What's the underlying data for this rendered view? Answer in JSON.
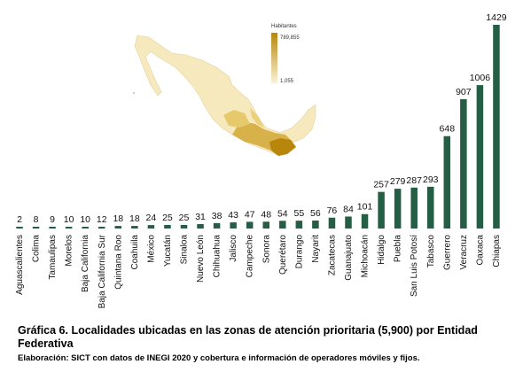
{
  "chart_data": {
    "type": "bar",
    "title": "Gráfica 6. Localidades ubicadas en las zonas de atención prioritaria (5,900) por Entidad Federativa",
    "source": "Elaboración: SICT con datos de INEGI 2020 y cobertura e información de operadores móviles y fijos.",
    "categories": [
      "Aguascalientes",
      "Colima",
      "Tamaulipas",
      "Morelos",
      "Baja California",
      "Baja California Sur",
      "Quintana Roo",
      "Coahuila",
      "México",
      "Yucatán",
      "Sinaloa",
      "Nuevo León",
      "Chihuahua",
      "Jalisco",
      "Campeche",
      "Sonora",
      "Querétaro",
      "Durango",
      "Nayarit",
      "Zacatecas",
      "Guanajuato",
      "Michoacán",
      "Hidalgo",
      "Puebla",
      "San Luis Potosí",
      "Tabasco",
      "Guerrero",
      "Veracruz",
      "Oaxaca",
      "Chiapas"
    ],
    "values": [
      2,
      8,
      9,
      10,
      10,
      12,
      18,
      18,
      24,
      25,
      25,
      31,
      38,
      43,
      47,
      48,
      54,
      55,
      56,
      76,
      84,
      101,
      257,
      279,
      287,
      293,
      648,
      907,
      1006,
      1429
    ],
    "ylim": [
      0,
      1429
    ],
    "grid": false,
    "bar_color": "#245e45"
  },
  "map_legend": {
    "title": "Habitantes",
    "max": "789,855",
    "min": "1,055",
    "color_high": "#b8860b",
    "color_low": "#fbf3d6"
  }
}
